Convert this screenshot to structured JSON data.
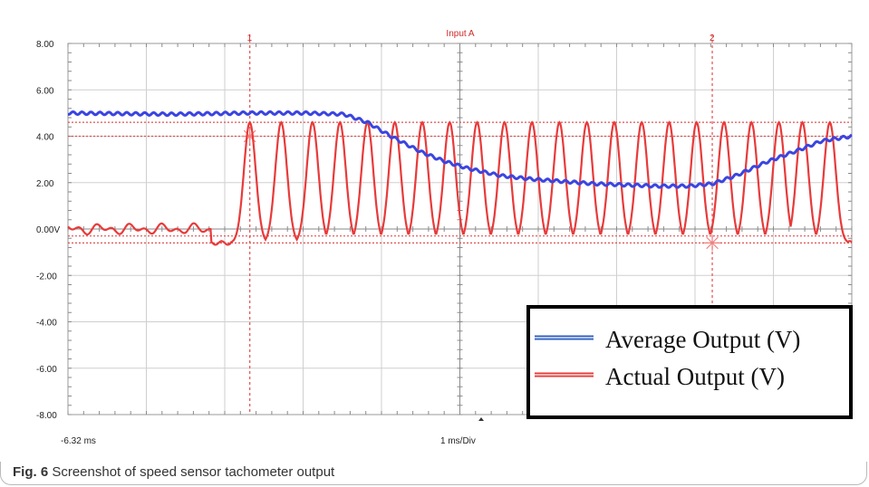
{
  "caption": {
    "label": "Fig. 6",
    "text": "Screenshot of speed sensor tachometer output"
  },
  "chart_data": {
    "type": "line",
    "title": "Input A",
    "ylabel": "",
    "xlabel": "1 ms/Div",
    "x_start_label": "-6.32 ms",
    "xlim": [
      -6.32,
      3.68
    ],
    "x_unit": "ms",
    "ylim": [
      -8,
      8
    ],
    "y_ticks": [
      8,
      6,
      4,
      2,
      0,
      -2,
      -4,
      -6,
      -8
    ],
    "y_tick_labels": [
      "8.00",
      "6.00",
      "4.00",
      "2.00",
      "0.00V",
      "-2.00",
      "-4.00",
      "-6.00",
      "-8.00"
    ],
    "grid": true,
    "legend_position": "bottom-right",
    "markers": [
      {
        "label": "1",
        "x": -4.0
      },
      {
        "label": "2",
        "x": 1.9
      }
    ],
    "reference_levels": [
      4.6,
      4.0,
      -0.3,
      -0.6
    ],
    "series": [
      {
        "name": "Average Output (V)",
        "color": "#3b45e0",
        "x": [
          -6.32,
          -5.0,
          -4.0,
          -3.3,
          -2.8,
          -2.5,
          -2.2,
          -1.8,
          -1.5,
          -1.2,
          -0.8,
          -0.4,
          0.0,
          0.4,
          0.8,
          1.2,
          1.6,
          1.9,
          2.2,
          2.6,
          3.0,
          3.3,
          3.68
        ],
        "values": [
          5.0,
          4.95,
          5.0,
          5.0,
          4.95,
          4.6,
          4.0,
          3.3,
          2.9,
          2.6,
          2.3,
          2.15,
          2.05,
          1.95,
          1.9,
          1.85,
          1.85,
          1.95,
          2.3,
          2.9,
          3.4,
          3.8,
          4.0
        ]
      },
      {
        "name": "Actual Output (V)",
        "color": "#e83a3a",
        "baseline_before_x": -4.5,
        "baseline_level_before": 0.0,
        "baseline_level_after": -0.6,
        "pulse_peak": 4.6,
        "pulse_x": [
          -4.0,
          -3.6,
          -3.2,
          -2.85,
          -2.5,
          -2.15,
          -1.8,
          -1.45,
          -1.1,
          -0.75,
          -0.4,
          -0.05,
          0.3,
          0.65,
          1.0,
          1.35,
          1.7,
          2.05,
          2.4,
          2.75,
          3.05,
          3.4
        ]
      }
    ]
  }
}
